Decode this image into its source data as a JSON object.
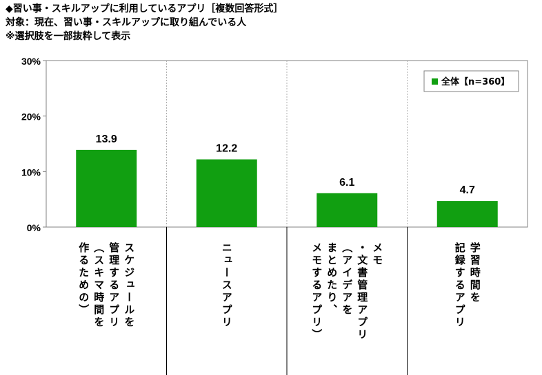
{
  "header": {
    "line1": "◆習い事・スキルアップに利用しているアプリ［複数回答形式］",
    "line2": "対象：現在、習い事・スキルアップに取り組んでいる人",
    "line3": "※選択肢を一部抜粋して表示"
  },
  "chart_data": {
    "type": "bar",
    "categories": [
      "スケジュールを\n管理するアプリ\n（スキマ時間を\n作るための）",
      "ニュースアプリ",
      "メモ\n・文書管理アプリ\n（アイデアを\nまとめたり、\nメモするアプリ）",
      "学習時間を\n記録するアプリ"
    ],
    "series": [
      {
        "name": "全体【n=360】",
        "values": [
          13.9,
          12.2,
          6.1,
          4.7
        ],
        "color": "#119f11"
      }
    ],
    "ylim": [
      0,
      30
    ],
    "yticks": [
      "0%",
      "10%",
      "20%",
      "30%"
    ],
    "grid": false,
    "legend": "top-right",
    "data_labels": [
      "13.9",
      "12.2",
      "6.1",
      "4.7"
    ]
  }
}
